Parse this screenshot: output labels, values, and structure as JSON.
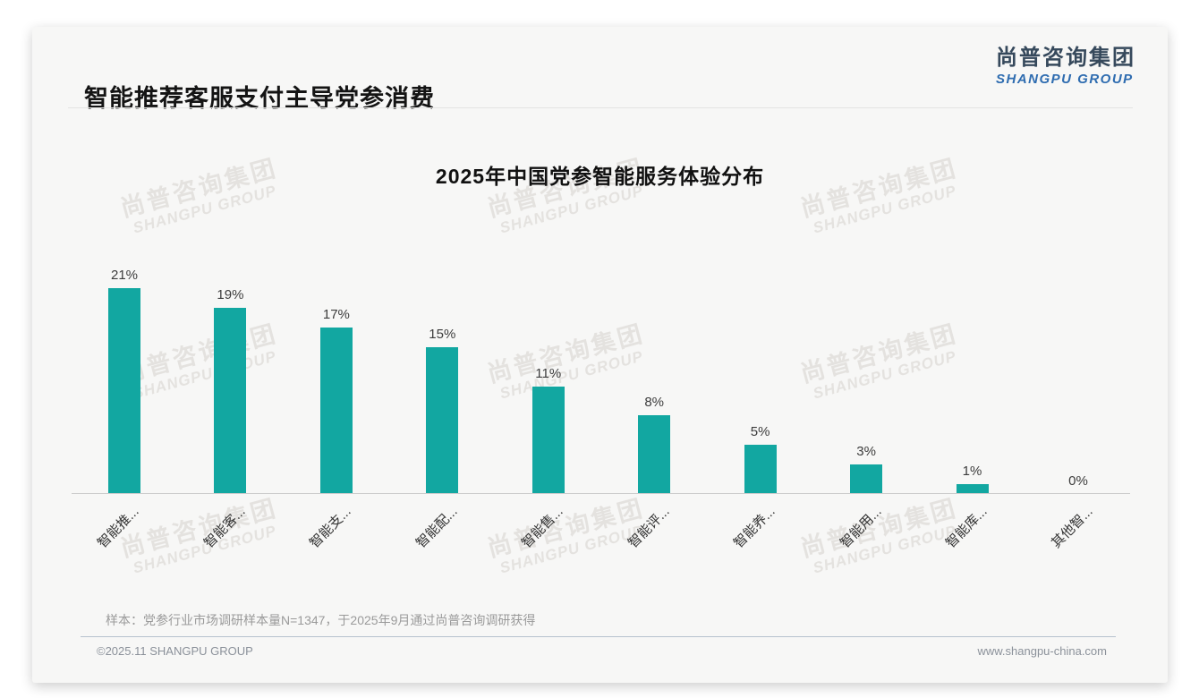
{
  "header": {
    "title": "智能推荐客服支付主导党参消费",
    "logo_cn": "尚普咨询集团",
    "logo_en": "SHANGPU GROUP"
  },
  "chart_data": {
    "type": "bar",
    "title": "2025年中国党参智能服务体验分布",
    "categories": [
      "智能推...",
      "智能客...",
      "智能支...",
      "智能配...",
      "智能售...",
      "智能评...",
      "智能养...",
      "智能用...",
      "智能库...",
      "其他智..."
    ],
    "values": [
      21,
      19,
      17,
      15,
      11,
      8,
      5,
      3,
      1,
      0
    ],
    "unit": "%",
    "value_labels": [
      "21%",
      "19%",
      "17%",
      "15%",
      "11%",
      "8%",
      "5%",
      "3%",
      "1%",
      "0%"
    ],
    "bar_color": "#12a7a1",
    "value_label_color": "#3c3c3c",
    "axis_color": "#cccccc",
    "ylim": [
      0,
      21
    ],
    "grid": false,
    "legend": false,
    "xlabel": "",
    "ylabel": ""
  },
  "watermark": {
    "line1": "尚普咨询集团",
    "line2": "SHANGPU GROUP"
  },
  "footnote": "样本：党参行业市场调研样本量N=1347，于2025年9月通过尚普咨询调研获得",
  "footer": {
    "left": "©2025.11 SHANGPU GROUP",
    "right": "www.shangpu-china.com"
  }
}
